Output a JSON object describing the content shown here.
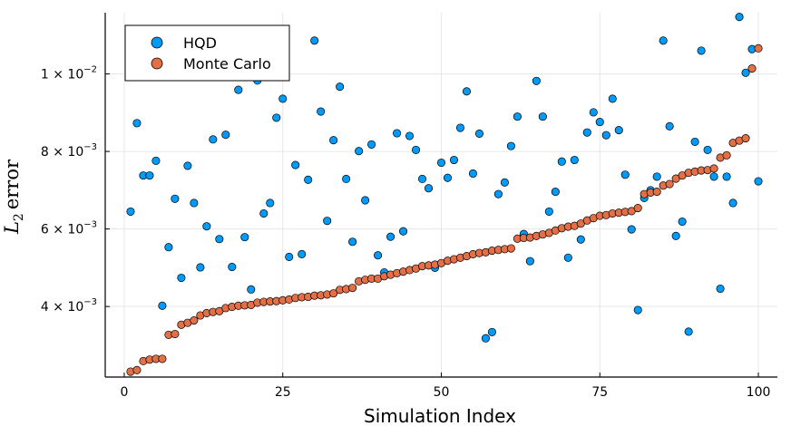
{
  "chart_data": {
    "type": "scatter",
    "title": "",
    "xlabel": "Simulation Index",
    "ylabel_base": "L",
    "ylabel_sub": "2",
    "ylabel_rest": "error",
    "xlim": [
      -3,
      103
    ],
    "ylim": [
      0.00218,
      0.01158
    ],
    "xticks": [
      {
        "value": 0,
        "label": "0"
      },
      {
        "value": 25,
        "label": "25"
      },
      {
        "value": 50,
        "label": "50"
      },
      {
        "value": 75,
        "label": "75"
      },
      {
        "value": 100,
        "label": "100"
      }
    ],
    "yticks": [
      {
        "value": 0.004,
        "mantissa": "4",
        "exp": "−3"
      },
      {
        "value": 0.006,
        "mantissa": "6",
        "exp": "−3"
      },
      {
        "value": 0.008,
        "mantissa": "8",
        "exp": "−3"
      },
      {
        "value": 0.01,
        "mantissa": "1",
        "exp": "−2"
      }
    ],
    "ytick_times": " × 10",
    "grid": true,
    "legend_position": "top-left",
    "series": [
      {
        "name": "HQD",
        "color": "#009af9",
        "x": [
          1,
          2,
          3,
          4,
          5,
          6,
          7,
          8,
          9,
          10,
          11,
          12,
          13,
          14,
          15,
          16,
          17,
          18,
          19,
          20,
          21,
          22,
          23,
          24,
          25,
          26,
          27,
          28,
          29,
          30,
          31,
          32,
          33,
          34,
          35,
          36,
          37,
          38,
          39,
          40,
          41,
          42,
          43,
          44,
          45,
          46,
          47,
          48,
          49,
          50,
          51,
          52,
          53,
          54,
          55,
          56,
          57,
          58,
          59,
          60,
          61,
          62,
          63,
          64,
          65,
          66,
          67,
          68,
          69,
          70,
          71,
          72,
          73,
          74,
          75,
          76,
          77,
          78,
          79,
          80,
          81,
          82,
          83,
          84,
          85,
          86,
          87,
          88,
          89,
          90,
          91,
          92,
          93,
          94,
          95,
          96,
          97,
          98,
          99,
          100
        ],
        "values": [
          0.00645,
          0.00873,
          0.00738,
          0.00738,
          0.00776,
          0.00402,
          0.00553,
          0.00678,
          0.00474,
          0.00763,
          0.00667,
          0.00501,
          0.00607,
          0.00831,
          0.00574,
          0.00843,
          0.00502,
          0.00959,
          0.00579,
          0.00444,
          0.00983,
          0.0064,
          0.00667,
          0.00887,
          0.00936,
          0.00528,
          0.00765,
          0.00535,
          0.00727,
          0.01086,
          0.00903,
          0.00621,
          0.00829,
          0.00967,
          0.00729,
          0.00567,
          0.00801,
          0.00674,
          0.00818,
          0.00532,
          0.00488,
          0.0058,
          0.00847,
          0.00594,
          0.0084,
          0.00804,
          0.00729,
          0.00705,
          0.005,
          0.00771,
          0.00732,
          0.00778,
          0.00861,
          0.00955,
          0.00743,
          0.00846,
          0.00318,
          0.00334,
          0.0069,
          0.0072,
          0.00814,
          0.0089,
          0.00587,
          0.00517,
          0.00982,
          0.0089,
          0.00645,
          0.00696,
          0.00774,
          0.00526,
          0.00778,
          0.00573,
          0.00849,
          0.00901,
          0.00876,
          0.00842,
          0.00936,
          0.00855,
          0.0074,
          0.00599,
          0.00391,
          0.0068,
          0.007,
          0.00735,
          0.01086,
          0.00865,
          0.00582,
          0.00619,
          0.00335,
          0.00825,
          0.0106,
          0.00804,
          0.00735,
          0.00446,
          0.00735,
          0.00667,
          0.01147,
          0.01003,
          0.01064,
          0.00723
        ]
      },
      {
        "name": "Monte Carlo",
        "color": "#e26f46",
        "x": [
          1,
          2,
          3,
          4,
          5,
          6,
          7,
          8,
          9,
          10,
          11,
          12,
          13,
          14,
          15,
          16,
          17,
          18,
          19,
          20,
          21,
          22,
          23,
          24,
          25,
          26,
          27,
          28,
          29,
          30,
          31,
          32,
          33,
          34,
          35,
          36,
          37,
          38,
          39,
          40,
          41,
          42,
          43,
          44,
          45,
          46,
          47,
          48,
          49,
          50,
          51,
          52,
          53,
          54,
          55,
          56,
          57,
          58,
          59,
          60,
          61,
          62,
          63,
          64,
          65,
          66,
          67,
          68,
          69,
          70,
          71,
          72,
          73,
          74,
          75,
          76,
          77,
          78,
          79,
          80,
          81,
          82,
          83,
          84,
          85,
          86,
          87,
          88,
          89,
          90,
          91,
          92,
          93,
          94,
          95,
          96,
          97,
          98,
          99,
          100
        ],
        "values": [
          0.00232,
          0.00236,
          0.00259,
          0.00263,
          0.00265,
          0.00265,
          0.00327,
          0.00329,
          0.00353,
          0.00358,
          0.00364,
          0.00377,
          0.00383,
          0.00386,
          0.00388,
          0.00396,
          0.00399,
          0.00402,
          0.00403,
          0.00404,
          0.0041,
          0.00412,
          0.00413,
          0.00414,
          0.00416,
          0.00418,
          0.00422,
          0.00424,
          0.00425,
          0.00428,
          0.00429,
          0.00431,
          0.00434,
          0.00443,
          0.00445,
          0.00448,
          0.00465,
          0.00469,
          0.00472,
          0.00472,
          0.00478,
          0.00482,
          0.00486,
          0.0049,
          0.00494,
          0.00498,
          0.00504,
          0.00506,
          0.00508,
          0.00512,
          0.00518,
          0.00522,
          0.00526,
          0.0053,
          0.00535,
          0.00538,
          0.0054,
          0.00544,
          0.00546,
          0.00548,
          0.0055,
          0.00575,
          0.00577,
          0.00578,
          0.00582,
          0.00586,
          0.0059,
          0.00596,
          0.00602,
          0.00606,
          0.00608,
          0.00614,
          0.00622,
          0.00628,
          0.00634,
          0.00636,
          0.0064,
          0.00642,
          0.00644,
          0.00646,
          0.00654,
          0.0069,
          0.00694,
          0.00696,
          0.00712,
          0.00716,
          0.0073,
          0.00738,
          0.00745,
          0.00748,
          0.00751,
          0.00752,
          0.00756,
          0.00784,
          0.0079,
          0.00822,
          0.00828,
          0.00834,
          0.01014,
          0.01066
        ]
      }
    ]
  }
}
